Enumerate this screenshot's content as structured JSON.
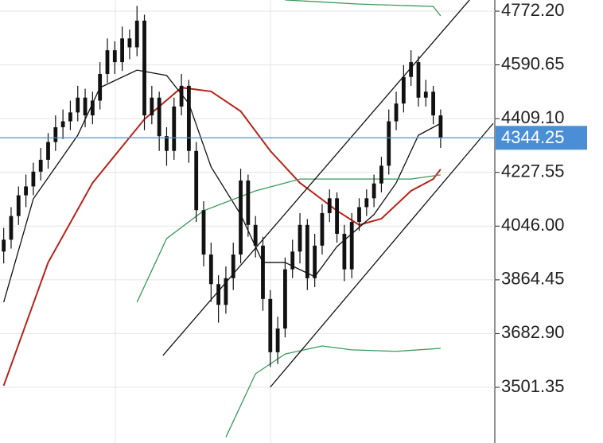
{
  "chart_data": {
    "type": "candlestick",
    "ylim": [
      3313.3,
      4809.8
    ],
    "xlim": [
      -0.5,
      66.1
    ],
    "yticks": [
      {
        "value": 4772.2,
        "label": "4772.20"
      },
      4590.65,
      {
        "value": 4409.1,
        "label": "4409.10"
      },
      4227.55,
      {
        "value": 4046,
        "label": "4046.00"
      },
      3864.45,
      {
        "value": 3682.9,
        "label": "3682.90"
      },
      3501.35
    ],
    "grid": true,
    "candle_color": "#111111",
    "open": [
      3960,
      4000,
      4080,
      4150,
      4180,
      4230,
      4270,
      4330,
      4380,
      4400,
      4430,
      4480,
      4420,
      4470,
      4560,
      4640,
      4600,
      4680,
      4650,
      4740,
      4420,
      4480,
      4350,
      4300,
      4450,
      4520,
      4300,
      4100,
      3950,
      3850,
      3780,
      3870,
      3950,
      4200,
      4050,
      3980,
      3800,
      3620,
      3700,
      3900,
      3960,
      4050,
      3870,
      3980,
      4090,
      4140,
      4020,
      3900,
      4060,
      4110,
      4140,
      4190,
      4250,
      4400,
      4460,
      4550,
      4600,
      4480,
      4500,
      4420
    ],
    "high": [
      4040,
      4110,
      4180,
      4220,
      4260,
      4310,
      4360,
      4420,
      4440,
      4470,
      4520,
      4510,
      4500,
      4600,
      4680,
      4670,
      4720,
      4710,
      4790,
      4760,
      4520,
      4500,
      4380,
      4480,
      4560,
      4540,
      4330,
      4130,
      3990,
      3880,
      3910,
      3990,
      4240,
      4220,
      4080,
      4010,
      3830,
      3740,
      3940,
      4000,
      4090,
      4070,
      4020,
      4120,
      4170,
      4160,
      4050,
      4090,
      4140,
      4170,
      4220,
      4280,
      4440,
      4500,
      4590,
      4640,
      4620,
      4540,
      4520,
      4440
    ],
    "low": [
      3920,
      3970,
      4050,
      4110,
      4150,
      4200,
      4240,
      4300,
      4340,
      4370,
      4400,
      4380,
      4390,
      4440,
      4530,
      4560,
      4570,
      4610,
      4620,
      4370,
      4390,
      4300,
      4250,
      4270,
      4420,
      4260,
      4060,
      3910,
      3790,
      3720,
      3750,
      3830,
      3920,
      4010,
      3940,
      3760,
      3570,
      3580,
      3670,
      3870,
      3920,
      3830,
      3840,
      3950,
      4060,
      3990,
      3860,
      3870,
      4030,
      4080,
      4110,
      4160,
      4220,
      4370,
      4430,
      4520,
      4450,
      4450,
      4390,
      4310
    ],
    "close": [
      4000,
      4080,
      4150,
      4180,
      4230,
      4270,
      4330,
      4380,
      4400,
      4430,
      4480,
      4420,
      4470,
      4560,
      4640,
      4600,
      4680,
      4650,
      4740,
      4420,
      4480,
      4350,
      4300,
      4450,
      4520,
      4300,
      4100,
      3950,
      3850,
      3780,
      3870,
      3950,
      4200,
      4050,
      3980,
      3800,
      3620,
      3700,
      3900,
      3960,
      4050,
      3870,
      3980,
      4090,
      4140,
      4020,
      3900,
      4060,
      4110,
      4140,
      4190,
      4250,
      4400,
      4460,
      4550,
      4600,
      4480,
      4500,
      4420,
      4344.25
    ],
    "lines": [
      {
        "color": "#b8231a",
        "x": [
          0,
          6,
          12,
          19,
          24,
          28,
          32,
          36,
          40,
          45,
          48,
          51,
          55,
          58,
          59
        ],
        "values": [
          3507,
          3923,
          4192,
          4407,
          4514,
          4501,
          4434,
          4300,
          4192,
          4098,
          4050,
          4071,
          4165,
          4205,
          4238
        ]
      },
      {
        "color": "#111111",
        "x": [
          0,
          4,
          10,
          13,
          18,
          22,
          25,
          28,
          32,
          35,
          38,
          42,
          45,
          50,
          53,
          56,
          59
        ],
        "values": [
          3789,
          4138,
          4353,
          4514,
          4573,
          4555,
          4460,
          4246,
          4085,
          3923,
          3923,
          3875,
          3977,
          4085,
          4192,
          4353,
          4393
        ]
      },
      {
        "color": "#3a9a5a",
        "x": [
          18,
          22,
          27,
          34,
          40,
          49,
          55,
          59
        ],
        "values": [
          3789,
          4004,
          4098,
          4165,
          4205,
          4205,
          4205,
          4219
        ]
      },
      {
        "color": "#3a9a5a",
        "x": [
          38,
          48,
          58,
          59
        ],
        "values": [
          4810,
          4796,
          4788,
          4756
        ]
      },
      {
        "color": "#3a9a5a",
        "x": [
          30,
          34,
          38,
          43,
          47,
          53,
          59
        ],
        "values": [
          3333,
          3547,
          3614,
          3641,
          3628,
          3623,
          3633
        ]
      },
      {
        "color": "#111111",
        "x": [
          21.5,
          62.9
        ],
        "values": [
          3609,
          4810
        ]
      },
      {
        "color": "#111111",
        "x": [
          36,
          66.1
        ],
        "values": [
          3502,
          4393
        ]
      }
    ],
    "last_price": 4344.25,
    "last_price_color": "#4a8fd6"
  }
}
